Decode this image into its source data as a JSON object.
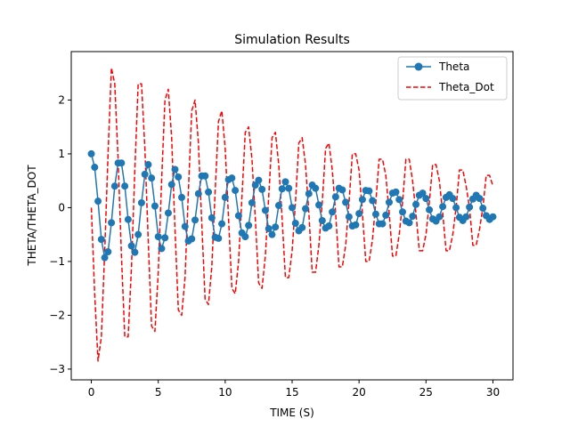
{
  "chart_data": {
    "type": "line",
    "title": "Simulation Results",
    "xlabel": "TIME (S)",
    "ylabel": "THETA/THETA_DOT",
    "xlim": [
      -1.5,
      31.5
    ],
    "ylim": [
      -3.2,
      2.9
    ],
    "xticks": [
      0,
      5,
      10,
      15,
      20,
      25,
      30
    ],
    "yticks": [
      -3,
      -2,
      -1,
      0,
      1,
      2
    ],
    "grid": false,
    "legend_position": "top-right",
    "series": [
      {
        "name": "Theta",
        "style": "solid-with-circle-markers",
        "color": "#1f77b4",
        "x": [
          0.0,
          0.25,
          0.5,
          0.75,
          1.0,
          1.25,
          1.5,
          1.75,
          2.0,
          2.25,
          2.5,
          2.75,
          3.0,
          3.25,
          3.5,
          3.75,
          4.0,
          4.25,
          4.5,
          4.75,
          5.0,
          5.25,
          5.5,
          5.75,
          6.0,
          6.25,
          6.5,
          6.75,
          7.0,
          7.25,
          7.5,
          7.75,
          8.0,
          8.25,
          8.5,
          8.75,
          9.0,
          9.25,
          9.5,
          9.75,
          10.0,
          10.25,
          10.5,
          10.75,
          11.0,
          11.25,
          11.5,
          11.75,
          12.0,
          12.25,
          12.5,
          12.75,
          13.0,
          13.25,
          13.5,
          13.75,
          14.0,
          14.25,
          14.5,
          14.75,
          15.0,
          15.25,
          15.5,
          15.75,
          16.0,
          16.25,
          16.5,
          16.75,
          17.0,
          17.25,
          17.5,
          17.75,
          18.0,
          18.25,
          18.5,
          18.75,
          19.0,
          19.25,
          19.5,
          19.75,
          20.0,
          20.25,
          20.5,
          20.75,
          21.0,
          21.25,
          21.5,
          21.75,
          22.0,
          22.25,
          22.5,
          22.75,
          23.0,
          23.25,
          23.5,
          23.75,
          24.0,
          24.25,
          24.5,
          24.75,
          25.0,
          25.25,
          25.5,
          25.75,
          26.0,
          26.25,
          26.5,
          26.75,
          27.0,
          27.25,
          27.5,
          27.75,
          28.0,
          28.25,
          28.5,
          28.75,
          29.0,
          29.25,
          29.5,
          29.75,
          30.0
        ],
        "values": [
          1.0,
          0.75,
          0.12,
          -0.59,
          -0.93,
          -0.82,
          -0.28,
          0.4,
          0.83,
          0.83,
          0.4,
          -0.22,
          -0.71,
          -0.83,
          -0.5,
          0.09,
          0.62,
          0.8,
          0.55,
          0.03,
          -0.54,
          -0.76,
          -0.56,
          -0.1,
          0.43,
          0.71,
          0.57,
          0.19,
          -0.35,
          -0.62,
          -0.58,
          -0.23,
          0.26,
          0.59,
          0.59,
          0.29,
          -0.19,
          -0.55,
          -0.57,
          -0.3,
          0.19,
          0.52,
          0.55,
          0.32,
          -0.15,
          -0.47,
          -0.54,
          -0.33,
          0.09,
          0.42,
          0.51,
          0.34,
          -0.05,
          -0.39,
          -0.5,
          -0.36,
          0.04,
          0.35,
          0.48,
          0.36,
          0.0,
          -0.29,
          -0.43,
          -0.37,
          -0.02,
          0.26,
          0.42,
          0.36,
          0.05,
          -0.24,
          -0.38,
          -0.34,
          -0.08,
          0.2,
          0.36,
          0.33,
          0.1,
          -0.17,
          -0.34,
          -0.32,
          -0.11,
          0.15,
          0.32,
          0.31,
          0.13,
          -0.12,
          -0.3,
          -0.3,
          -0.14,
          0.1,
          0.27,
          0.29,
          0.15,
          -0.08,
          -0.25,
          -0.28,
          -0.16,
          0.06,
          0.23,
          0.27,
          0.17,
          -0.04,
          -0.21,
          -0.25,
          -0.17,
          0.02,
          0.19,
          0.24,
          0.17,
          0.0,
          -0.18,
          -0.24,
          -0.17,
          0.01,
          0.16,
          0.23,
          0.17,
          -0.01,
          -0.15,
          -0.22,
          -0.17
        ]
      },
      {
        "name": "Theta_Dot",
        "style": "dashed",
        "color": "#ff0000",
        "x": [
          0.0,
          0.25,
          0.5,
          0.75,
          1.0,
          1.25,
          1.5,
          1.75,
          2.0,
          2.25,
          2.5,
          2.75,
          3.0,
          3.25,
          3.5,
          3.75,
          4.0,
          4.25,
          4.5,
          4.75,
          5.0,
          5.25,
          5.5,
          5.75,
          6.0,
          6.25,
          6.5,
          6.75,
          7.0,
          7.25,
          7.5,
          7.75,
          8.0,
          8.25,
          8.5,
          8.75,
          9.0,
          9.25,
          9.5,
          9.75,
          10.0,
          10.25,
          10.5,
          10.75,
          11.0,
          11.25,
          11.5,
          11.75,
          12.0,
          12.25,
          12.5,
          12.75,
          13.0,
          13.25,
          13.5,
          13.75,
          14.0,
          14.25,
          14.5,
          14.75,
          15.0,
          15.25,
          15.5,
          15.75,
          16.0,
          16.25,
          16.5,
          16.75,
          17.0,
          17.25,
          17.5,
          17.75,
          18.0,
          18.25,
          18.5,
          18.75,
          19.0,
          19.25,
          19.5,
          19.75,
          20.0,
          20.25,
          20.5,
          20.75,
          21.0,
          21.25,
          21.5,
          21.75,
          22.0,
          22.25,
          22.5,
          22.75,
          23.0,
          23.25,
          23.5,
          23.75,
          24.0,
          24.25,
          24.5,
          24.75,
          25.0,
          25.25,
          25.5,
          25.75,
          26.0,
          26.25,
          26.5,
          26.75,
          27.0,
          27.25,
          27.5,
          27.75,
          28.0,
          28.25,
          28.5,
          28.75,
          29.0,
          29.25,
          29.5,
          29.75,
          30.0
        ],
        "values": [
          0.0,
          -1.6,
          -2.85,
          -2.4,
          -0.8,
          1.0,
          2.6,
          2.3,
          0.9,
          -0.9,
          -2.4,
          -2.4,
          -1.1,
          0.7,
          2.3,
          2.3,
          1.1,
          -0.6,
          -2.2,
          -2.3,
          -1.2,
          0.5,
          2.0,
          2.2,
          1.3,
          -0.4,
          -1.9,
          -2.0,
          -1.3,
          0.3,
          1.8,
          2.0,
          1.2,
          -0.3,
          -1.7,
          -1.8,
          -1.1,
          0.3,
          1.6,
          1.8,
          1.1,
          -0.2,
          -1.5,
          -1.6,
          -1.0,
          0.2,
          1.4,
          1.5,
          0.9,
          -0.2,
          -1.4,
          -1.5,
          -0.9,
          0.2,
          1.3,
          1.4,
          0.8,
          -0.2,
          -1.3,
          -1.3,
          -0.8,
          0.1,
          1.2,
          1.3,
          0.8,
          -0.1,
          -1.2,
          -1.2,
          -0.7,
          0.1,
          1.1,
          1.2,
          0.7,
          -0.1,
          -1.1,
          -1.1,
          -0.7,
          0.1,
          1.0,
          1.0,
          0.7,
          -0.1,
          -1.0,
          -1.0,
          -0.6,
          0.1,
          0.9,
          0.9,
          0.6,
          -0.1,
          -0.9,
          -0.9,
          -0.5,
          0.1,
          0.9,
          0.9,
          0.5,
          -0.1,
          -0.8,
          -0.8,
          -0.5,
          0.1,
          0.8,
          0.8,
          0.5,
          -0.1,
          -0.8,
          -0.8,
          -0.5,
          0.0,
          0.7,
          0.7,
          0.4,
          0.0,
          -0.7,
          -0.7,
          -0.4,
          0.0,
          0.6,
          0.6,
          0.4
        ]
      }
    ]
  }
}
